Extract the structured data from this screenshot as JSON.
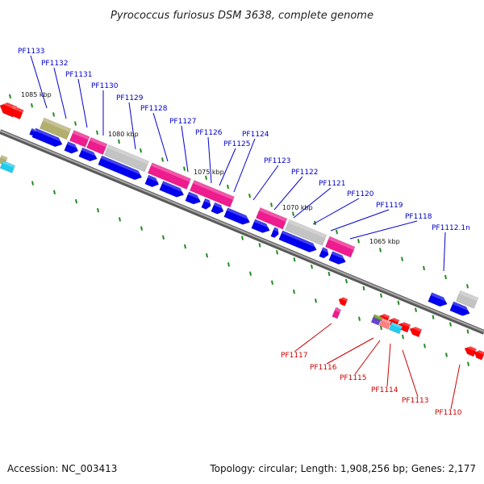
{
  "title": "Pyrococcus furiosus DSM 3638, complete genome",
  "footer": {
    "accession": "Accession: NC_003413",
    "topology": "Topology: circular; Length: 1,908,256 bp; Genes: 2,177"
  },
  "colors": {
    "backbone": "#777777",
    "tick": "#228b22",
    "label_forward": "#0000cc",
    "label_reverse": "#cc0000",
    "gene_blue": "#0000ee",
    "gene_magenta": "#ee1c8e",
    "gene_gray": "#c3c3c3",
    "gene_olive": "#b2ae6e",
    "gene_red": "#ff0000",
    "gene_cyan": "#22ccee",
    "gene_salmon": "#ff8080",
    "gene_green": "#77aa33",
    "gene_purple": "#6644cc"
  },
  "kbp_markers": [
    "1085 kbp",
    "1080 kbp",
    "1075 kbp",
    "1070 kbp",
    "1065 kbp"
  ],
  "forward_genes": [
    "PF1133",
    "PF1132",
    "PF1131",
    "PF1130",
    "PF1129",
    "PF1128",
    "PF1127",
    "PF1126",
    "PF1125",
    "PF1124",
    "PF1123",
    "PF1122",
    "PF1121",
    "PF1120",
    "PF1119",
    "PF1118",
    "PF1112.1n"
  ],
  "reverse_genes": [
    "PF1117",
    "PF1116",
    "PF1115",
    "PF1114",
    "PF1113",
    "PF1110"
  ]
}
